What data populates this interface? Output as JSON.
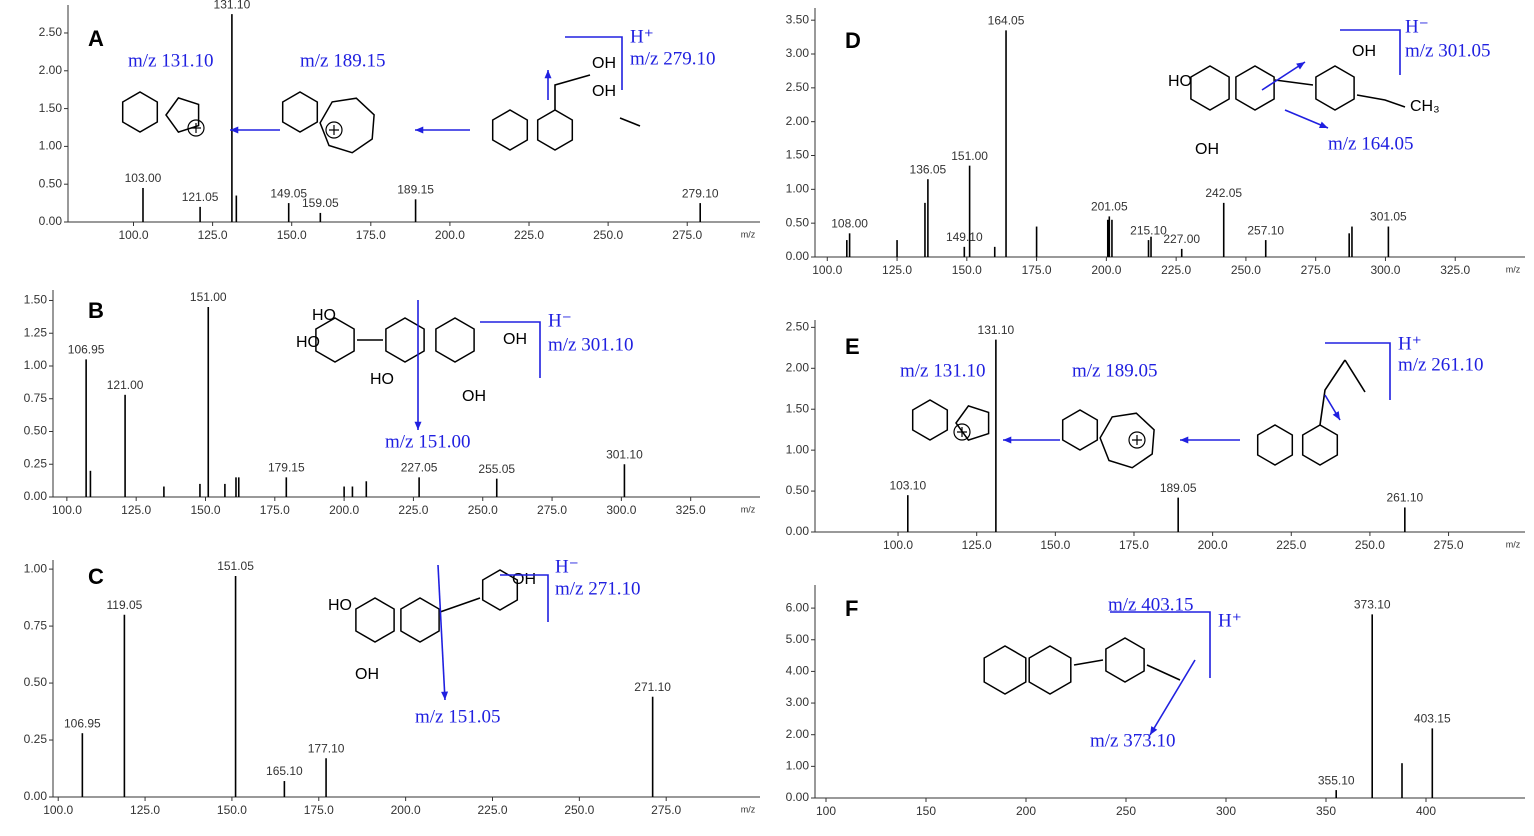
{
  "chart_data": [
    {
      "type": "bar",
      "panel_label": "A",
      "color": "#000000",
      "x_label": "m/z",
      "x": [
        103.0,
        121.05,
        131.1,
        132.5,
        149.05,
        159.05,
        189.15,
        279.1
      ],
      "values": [
        0.45,
        0.2,
        2.75,
        0.35,
        0.25,
        0.12,
        0.3,
        0.25
      ],
      "peak_labels": [
        "103.00",
        "121.05",
        "131.10",
        null,
        "149.05",
        "159.05",
        "189.15",
        "279.10"
      ],
      "xlim": [
        79.3,
        298
      ],
      "ylim": [
        0,
        2.87
      ],
      "xticks": [
        {
          "value": 100,
          "label": "100.0"
        },
        {
          "value": 125,
          "label": "125.0"
        },
        {
          "value": 150,
          "label": "150.0"
        },
        {
          "value": 175,
          "label": "175.0"
        },
        {
          "value": 200,
          "label": "200.0"
        },
        {
          "value": 225,
          "label": "225.0"
        },
        {
          "value": 250,
          "label": "250.0"
        },
        {
          "value": 275,
          "label": "275.0"
        }
      ],
      "yticks": [
        {
          "value": 0,
          "label": "0.00"
        },
        {
          "value": 0.5,
          "label": "0.50"
        },
        {
          "value": 1,
          "label": "1.00"
        },
        {
          "value": 1.5,
          "label": "1.50"
        },
        {
          "value": 2,
          "label": "2.00"
        },
        {
          "value": 2.5,
          "label": "2.50"
        }
      ],
      "annotations": [
        "m/z 131.10",
        "m/z 189.15",
        "H⁺",
        "m/z 279.10",
        "OH",
        "OH"
      ]
    },
    {
      "type": "bar",
      "panel_label": "B",
      "color": "#000000",
      "x_label": "m/z",
      "x": [
        106.95,
        108.5,
        121.0,
        135,
        148,
        151.0,
        157,
        161,
        162,
        179.15,
        200,
        203,
        208,
        227.05,
        255.05,
        301.1
      ],
      "values": [
        1.05,
        0.2,
        0.78,
        0.08,
        0.1,
        1.45,
        0.1,
        0.15,
        0.15,
        0.15,
        0.08,
        0.08,
        0.12,
        0.15,
        0.14,
        0.25
      ],
      "peak_labels": [
        "106.95",
        null,
        "121.00",
        null,
        null,
        "151.00",
        null,
        null,
        null,
        "179.15",
        null,
        null,
        null,
        "227.05",
        "255.05",
        "301.10"
      ],
      "xlim": [
        95,
        350
      ],
      "ylim": [
        0,
        1.58
      ],
      "xticks": [
        {
          "value": 100,
          "label": "100.0"
        },
        {
          "value": 125,
          "label": "125.0"
        },
        {
          "value": 150,
          "label": "150.0"
        },
        {
          "value": 175,
          "label": "175.0"
        },
        {
          "value": 200,
          "label": "200.0"
        },
        {
          "value": 225,
          "label": "225.0"
        },
        {
          "value": 250,
          "label": "250.0"
        },
        {
          "value": 275,
          "label": "275.0"
        },
        {
          "value": 300,
          "label": "300.0"
        },
        {
          "value": 325,
          "label": "325.0"
        }
      ],
      "yticks": [
        {
          "value": 0,
          "label": "0.00"
        },
        {
          "value": 0.25,
          "label": "0.25"
        },
        {
          "value": 0.5,
          "label": "0.50"
        },
        {
          "value": 0.75,
          "label": "0.75"
        },
        {
          "value": 1,
          "label": "1.00"
        },
        {
          "value": 1.25,
          "label": "1.25"
        },
        {
          "value": 1.5,
          "label": "1.50"
        }
      ],
      "annotations": [
        "H⁻",
        "m/z 301.10",
        "m/z 151.00",
        "HO",
        "HO",
        "OH",
        "HO",
        "OH"
      ]
    },
    {
      "type": "bar",
      "panel_label": "C",
      "color": "#000000",
      "x_label": "m/z",
      "x": [
        106.95,
        119.05,
        151.05,
        165.1,
        177.1,
        271.1
      ],
      "values": [
        0.28,
        0.8,
        0.97,
        0.07,
        0.17,
        0.44
      ],
      "peak_labels": [
        "106.95",
        "119.05",
        "151.05",
        "165.10",
        "177.10",
        "271.10"
      ],
      "xlim": [
        98.5,
        302
      ],
      "ylim": [
        0,
        1.04
      ],
      "xticks": [
        {
          "value": 100,
          "label": "100.0"
        },
        {
          "value": 125,
          "label": "125.0"
        },
        {
          "value": 150,
          "label": "150.0"
        },
        {
          "value": 175,
          "label": "175.0"
        },
        {
          "value": 200,
          "label": "200.0"
        },
        {
          "value": 225,
          "label": "225.0"
        },
        {
          "value": 250,
          "label": "250.0"
        },
        {
          "value": 275,
          "label": "275.0"
        }
      ],
      "yticks": [
        {
          "value": 0,
          "label": "0.00"
        },
        {
          "value": 0.25,
          "label": "0.25"
        },
        {
          "value": 0.5,
          "label": "0.50"
        },
        {
          "value": 0.75,
          "label": "0.75"
        },
        {
          "value": 1,
          "label": "1.00"
        }
      ],
      "annotations": [
        "H⁻",
        "m/z 271.10",
        "m/z 151.05",
        "OH",
        "HO",
        "OH"
      ]
    },
    {
      "type": "bar",
      "panel_label": "D",
      "color": "#000000",
      "x_label": "m/z",
      "x": [
        107,
        108.0,
        125,
        135,
        136.05,
        149.1,
        151.0,
        160,
        164.05,
        175,
        200.5,
        201.05,
        202,
        215.1,
        216,
        227.0,
        242.05,
        257.1,
        287,
        288,
        301.05
      ],
      "values": [
        0.25,
        0.35,
        0.25,
        0.8,
        1.15,
        0.15,
        1.35,
        0.15,
        3.35,
        0.45,
        0.55,
        0.6,
        0.55,
        0.25,
        0.3,
        0.12,
        0.8,
        0.25,
        0.35,
        0.45,
        0.45
      ],
      "peak_labels": [
        null,
        "108.00",
        null,
        null,
        "136.05",
        "149.10",
        "151.00",
        null,
        "164.05",
        null,
        null,
        "201.05",
        null,
        "215.10",
        null,
        "227.00",
        "242.05",
        "257.10",
        null,
        null,
        "301.05"
      ],
      "xlim": [
        95.6,
        350
      ],
      "ylim": [
        0,
        3.68
      ],
      "xticks": [
        {
          "value": 100,
          "label": "100.0"
        },
        {
          "value": 125,
          "label": "125.0"
        },
        {
          "value": 150,
          "label": "150.0"
        },
        {
          "value": 175,
          "label": "175.0"
        },
        {
          "value": 200,
          "label": "200.0"
        },
        {
          "value": 225,
          "label": "225.0"
        },
        {
          "value": 250,
          "label": "250.0"
        },
        {
          "value": 275,
          "label": "275.0"
        },
        {
          "value": 300,
          "label": "300.0"
        },
        {
          "value": 325,
          "label": "325.0"
        }
      ],
      "yticks": [
        {
          "value": 0,
          "label": "0.00"
        },
        {
          "value": 0.5,
          "label": "0.50"
        },
        {
          "value": 1,
          "label": "1.00"
        },
        {
          "value": 1.5,
          "label": "1.50"
        },
        {
          "value": 2,
          "label": "2.00"
        },
        {
          "value": 2.5,
          "label": "2.50"
        },
        {
          "value": 3,
          "label": "3.00"
        },
        {
          "value": 3.5,
          "label": "3.50"
        }
      ],
      "annotations": [
        "H⁻",
        "m/z 301.05",
        "m/z 164.05",
        "OH",
        "HO",
        "OH",
        "CH₃"
      ]
    },
    {
      "type": "bar",
      "panel_label": "E",
      "color": "#000000",
      "x_label": "m/z",
      "x": [
        103.1,
        131.1,
        189.05,
        261.1
      ],
      "values": [
        0.45,
        2.35,
        0.42,
        0.3
      ],
      "peak_labels": [
        "103.10",
        "131.10",
        "189.05",
        "261.10"
      ],
      "xlim": [
        73.6,
        299.3
      ],
      "ylim": [
        0,
        2.59
      ],
      "xticks": [
        {
          "value": 100,
          "label": "100.0"
        },
        {
          "value": 125,
          "label": "125.0"
        },
        {
          "value": 150,
          "label": "150.0"
        },
        {
          "value": 175,
          "label": "175.0"
        },
        {
          "value": 200,
          "label": "200.0"
        },
        {
          "value": 225,
          "label": "225.0"
        },
        {
          "value": 250,
          "label": "250.0"
        },
        {
          "value": 275,
          "label": "275.0"
        }
      ],
      "yticks": [
        {
          "value": 0,
          "label": "0.00"
        },
        {
          "value": 0.5,
          "label": "0.50"
        },
        {
          "value": 1,
          "label": "1.00"
        },
        {
          "value": 1.5,
          "label": "1.50"
        },
        {
          "value": 2,
          "label": "2.00"
        },
        {
          "value": 2.5,
          "label": "2.50"
        }
      ],
      "annotations": [
        "m/z 131.10",
        "m/z 189.05",
        "H⁺",
        "m/z 261.10"
      ]
    },
    {
      "type": "bar",
      "panel_label": "F",
      "color": "#000000",
      "x": [
        355.1,
        373.1,
        388,
        403.15
      ],
      "values": [
        0.25,
        5.8,
        1.1,
        2.2
      ],
      "peak_labels": [
        "355.10",
        "373.10",
        null,
        "403.15"
      ],
      "xlim": [
        94.5,
        449.5
      ],
      "ylim": [
        0,
        6.73
      ],
      "xticks": [
        100,
        150,
        200,
        250,
        300,
        350,
        400
      ],
      "yticks": [
        {
          "value": 0,
          "label": "0.00"
        },
        {
          "value": 1,
          "label": "1.00"
        },
        {
          "value": 2,
          "label": "2.00"
        },
        {
          "value": 3,
          "label": "3.00"
        },
        {
          "value": 4,
          "label": "4.00"
        },
        {
          "value": 5,
          "label": "5.00"
        },
        {
          "value": 6,
          "label": "6.00"
        }
      ],
      "annotations": [
        "m/z 403.15",
        "H⁺",
        "m/z 373.10"
      ]
    }
  ]
}
